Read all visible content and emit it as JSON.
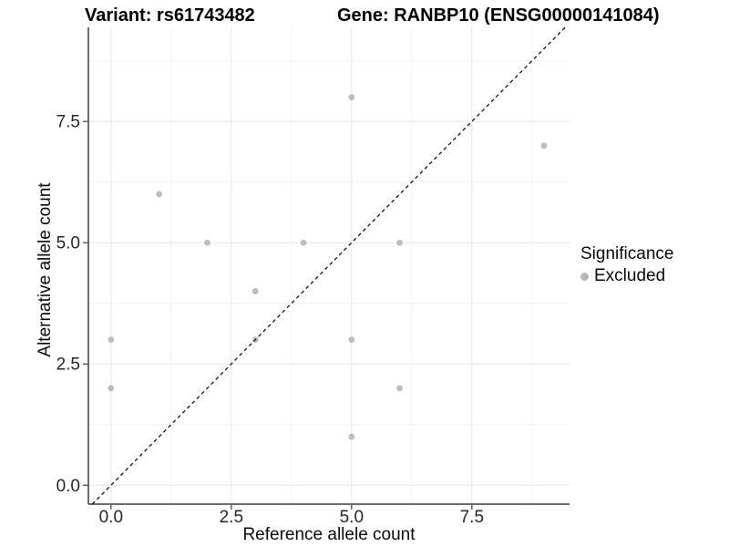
{
  "chart_data": {
    "type": "scatter",
    "title_left": "Variant: rs61743482",
    "title_right": "Gene: RANBP10 (ENSG00000141084)",
    "xlabel": "Reference allele count",
    "ylabel": "Alternative allele count",
    "xlim": [
      -0.47,
      9.53
    ],
    "ylim": [
      -0.39,
      9.44
    ],
    "x_ticks": [
      0,
      2.5,
      5,
      7.5
    ],
    "x_tick_labels": [
      "0.0",
      "2.5",
      "5.0",
      "7.5"
    ],
    "y_ticks": [
      0,
      2.5,
      5,
      7.5
    ],
    "y_tick_labels": [
      "0.0",
      "2.5",
      "5.0",
      "7.5"
    ],
    "x_minor_ticks": [
      1.25,
      3.75,
      6.25,
      8.75
    ],
    "y_minor_ticks": [
      1.25,
      3.75,
      6.25,
      8.75
    ],
    "grid": true,
    "points": [
      {
        "x": 0,
        "y": 2
      },
      {
        "x": 0,
        "y": 3
      },
      {
        "x": 1,
        "y": 6
      },
      {
        "x": 2,
        "y": 5
      },
      {
        "x": 3,
        "y": 3
      },
      {
        "x": 3,
        "y": 4
      },
      {
        "x": 4,
        "y": 5
      },
      {
        "x": 5,
        "y": 1
      },
      {
        "x": 5,
        "y": 3
      },
      {
        "x": 5,
        "y": 8
      },
      {
        "x": 6,
        "y": 2
      },
      {
        "x": 6,
        "y": 5
      },
      {
        "x": 9,
        "y": 7
      }
    ],
    "identity_line": {
      "slope": 1,
      "intercept": 0,
      "style": "dashed",
      "color": "#111111"
    },
    "legend": {
      "title": "Significance",
      "position": "right",
      "items": [
        {
          "label": "Excluded",
          "color": "#b8b8b8"
        }
      ]
    },
    "colors": {
      "point": "#bdbdbd",
      "major_grid": "#e5e5e5",
      "minor_grid": "#f2f2f2",
      "axis_line": "#3c3c3c",
      "tick_text": "#262626"
    }
  }
}
